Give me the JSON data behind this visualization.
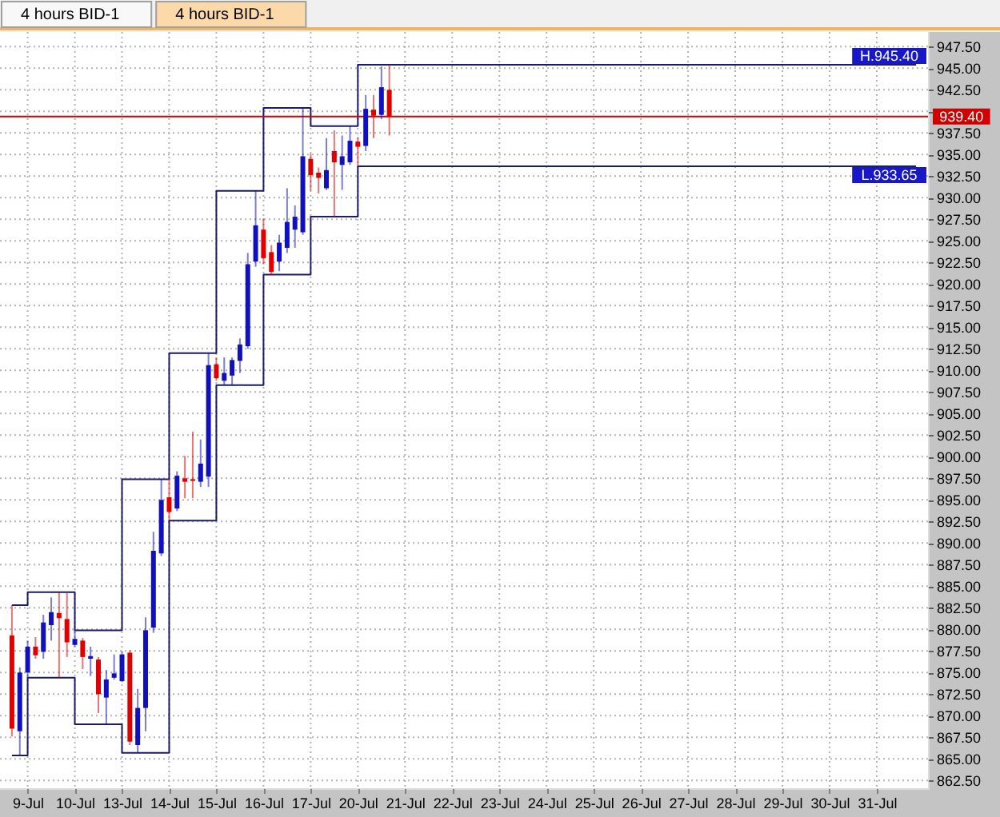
{
  "chart_data": {
    "type": "candlestick",
    "categories": [
      null,
      null,
      "9-Jul",
      null,
      null,
      null,
      null,
      null,
      "10-Jul",
      null,
      null,
      null,
      null,
      null,
      "13-Jul",
      null,
      null,
      null,
      null,
      null,
      "14-Jul",
      null,
      null,
      null,
      null,
      null,
      "15-Jul",
      null,
      null,
      null,
      null,
      null,
      "16-Jul",
      null,
      null,
      null,
      null,
      null,
      "17-Jul",
      null,
      null,
      null,
      null,
      null,
      "20-Jul",
      null,
      null,
      null,
      null,
      null,
      "21-Jul",
      null,
      null,
      null,
      null,
      null,
      "22-Jul",
      null,
      null,
      null,
      null,
      null,
      "23-Jul",
      null,
      null,
      null,
      null,
      null,
      "24-Jul",
      null,
      null,
      null,
      null,
      null,
      "25-Jul",
      null,
      null,
      null,
      null,
      null,
      "26-Jul",
      null,
      null,
      null,
      null,
      null,
      "27-Jul",
      null,
      null,
      null,
      null,
      null,
      "28-Jul",
      null,
      null,
      null,
      null,
      null,
      "29-Jul",
      null,
      null,
      null,
      null,
      null,
      "30-Jul",
      null,
      null,
      null,
      null,
      null,
      "31-Jul",
      null,
      null,
      null,
      null,
      null
    ],
    "ohlc": [
      [
        879.3,
        882.8,
        867.6,
        868.5
      ],
      [
        868.2,
        875.6,
        865.4,
        875.0
      ],
      [
        875.0,
        878.7,
        874.4,
        878.0
      ],
      [
        878.0,
        879.1,
        876.6,
        877.0
      ],
      [
        877.4,
        881.7,
        876.6,
        880.8
      ],
      [
        880.5,
        883.7,
        878.7,
        882.0
      ],
      [
        881.9,
        884.3,
        874.4,
        881.3
      ],
      [
        881.2,
        884.2,
        876.8,
        878.5
      ],
      [
        878.2,
        879.9,
        878.0,
        878.9
      ],
      [
        878.7,
        879.0,
        875.4,
        876.8
      ],
      [
        876.6,
        878.0,
        874.6,
        876.9
      ],
      [
        876.5,
        876.8,
        870.3,
        872.5
      ],
      [
        872.1,
        875.3,
        869.0,
        874.2
      ],
      [
        874.4,
        877.1,
        874.2,
        874.9
      ],
      [
        874.0,
        877.4,
        873.9,
        877.1
      ],
      [
        877.3,
        877.6,
        866.6,
        867.0
      ],
      [
        866.6,
        873.1,
        865.7,
        870.9
      ],
      [
        870.9,
        881.4,
        868.2,
        879.9
      ],
      [
        880.2,
        891.3,
        879.6,
        889.1
      ],
      [
        888.8,
        897.4,
        888.5,
        895.0
      ],
      [
        895.3,
        897.4,
        892.6,
        893.6
      ],
      [
        894.0,
        898.3,
        893.7,
        897.8
      ],
      [
        897.5,
        900.1,
        895.2,
        897.1
      ],
      [
        897.4,
        902.9,
        895.2,
        897.2
      ],
      [
        897.1,
        902.0,
        896.5,
        899.2
      ],
      [
        897.7,
        912.0,
        896.5,
        910.6
      ],
      [
        910.7,
        911.5,
        908.8,
        909.1
      ],
      [
        908.8,
        911.5,
        908.3,
        909.7
      ],
      [
        909.4,
        911.5,
        908.3,
        911.2
      ],
      [
        911.1,
        913.7,
        909.7,
        913.0
      ],
      [
        912.8,
        923.6,
        912.5,
        922.3
      ],
      [
        922.6,
        930.8,
        922.0,
        926.8
      ],
      [
        926.3,
        927.6,
        922.3,
        923.0
      ],
      [
        923.7,
        924.5,
        921.1,
        921.4
      ],
      [
        922.6,
        925.7,
        921.5,
        924.8
      ],
      [
        924.2,
        931.1,
        923.6,
        927.2
      ],
      [
        926.3,
        929.1,
        924.2,
        927.8
      ],
      [
        926.0,
        940.4,
        925.7,
        934.8
      ],
      [
        934.5,
        935.1,
        930.8,
        932.6
      ],
      [
        932.9,
        933.5,
        930.5,
        932.3
      ],
      [
        931.1,
        936.9,
        930.9,
        933.2
      ],
      [
        935.4,
        937.8,
        927.8,
        934.1
      ],
      [
        933.8,
        937.2,
        930.9,
        934.8
      ],
      [
        934.1,
        938.3,
        933.8,
        936.6
      ],
      [
        936.5,
        937.0,
        933.65,
        935.9
      ],
      [
        936.0,
        941.9,
        935.4,
        940.3
      ],
      [
        940.2,
        941.9,
        936.9,
        939.5
      ],
      [
        939.6,
        945.2,
        939.1,
        942.8
      ],
      [
        942.5,
        945.4,
        937.2,
        939.4
      ],
      null,
      null,
      null,
      null,
      null,
      null,
      null,
      null,
      null,
      null,
      null,
      null,
      null,
      null,
      null,
      null,
      null,
      null,
      null,
      null,
      null,
      null,
      null,
      null,
      null,
      null,
      null,
      null,
      null,
      null,
      null,
      null,
      null,
      null,
      null,
      null,
      null,
      null,
      null,
      null,
      null,
      null,
      null,
      null,
      null,
      null,
      null,
      null,
      null,
      null,
      null,
      null,
      null,
      null,
      null,
      null,
      null,
      null,
      null,
      null,
      null,
      null,
      null,
      null,
      null,
      null,
      null
    ],
    "colors": [
      "#e00000",
      "#1010c0",
      "#1010c0",
      "#e00000",
      "#1010c0",
      "#1010c0",
      "#e00000",
      "#e00000",
      "#1010c0",
      "#e00000",
      "#1010c0",
      "#e00000",
      "#1010c0",
      "#1010c0",
      "#1010c0",
      "#e00000",
      "#1010c0",
      "#1010c0",
      "#1010c0",
      "#1010c0",
      "#e00000",
      "#1010c0",
      "#e00000",
      "#e00000",
      "#1010c0",
      "#1010c0",
      "#e00000",
      "#1010c0",
      "#1010c0",
      "#1010c0",
      "#1010c0",
      "#1010c0",
      "#e00000",
      "#e00000",
      "#1010c0",
      "#1010c0",
      "#1010c0",
      "#1010c0",
      "#e00000",
      "#e00000",
      "#1010c0",
      "#e00000",
      "#1010c0",
      "#1010c0",
      "#e00000",
      "#1010c0",
      "#e00000",
      "#1010c0",
      "#e00000",
      null,
      null,
      null,
      null,
      null,
      null,
      null,
      null,
      null,
      null,
      null,
      null,
      null,
      null,
      null,
      null,
      null,
      null,
      null,
      null,
      null,
      null,
      null,
      null,
      null,
      null,
      null,
      null,
      null,
      null,
      null,
      null,
      null,
      null,
      null,
      null,
      null,
      null,
      null,
      null,
      null,
      null,
      null,
      null,
      null,
      null,
      null,
      null,
      null,
      null,
      null,
      null,
      null,
      null,
      null,
      null,
      null,
      null,
      null,
      null,
      null,
      null,
      null,
      null,
      null,
      null,
      null
    ],
    "series": [
      {
        "type": "step",
        "color": "#1b1b6b",
        "values": [
          882.8,
          882.8,
          884.3,
          884.3,
          884.3,
          884.3,
          884.3,
          884.3,
          879.9,
          879.9,
          879.9,
          879.9,
          879.9,
          879.9,
          897.4,
          897.4,
          897.4,
          897.4,
          897.4,
          897.4,
          912.0,
          912.0,
          912.0,
          912.0,
          912.0,
          912.0,
          930.8,
          930.8,
          930.8,
          930.8,
          930.8,
          930.8,
          940.4,
          940.4,
          940.4,
          940.4,
          940.4,
          940.4,
          938.3,
          938.3,
          938.3,
          938.3,
          938.3,
          938.3,
          945.4,
          945.4,
          945.4,
          945.4,
          945.4,
          945.4,
          945.4,
          945.4,
          945.4,
          945.4,
          945.4,
          945.4,
          945.4,
          945.4,
          945.4,
          945.4,
          945.4,
          945.4,
          945.4,
          945.4,
          945.4,
          945.4,
          945.4,
          945.4,
          945.4,
          945.4,
          945.4,
          945.4,
          945.4,
          945.4,
          945.4,
          945.4,
          945.4,
          945.4,
          945.4,
          945.4,
          945.4,
          945.4,
          945.4,
          945.4,
          945.4,
          945.4,
          945.4,
          945.4,
          945.4,
          945.4,
          945.4,
          945.4,
          945.4,
          945.4,
          945.4,
          945.4,
          945.4,
          945.4,
          945.4,
          945.4,
          945.4,
          945.4,
          945.4,
          945.4,
          945.4,
          945.4,
          945.4,
          945.4,
          945.4,
          945.4,
          945.4,
          945.4,
          945.4,
          945.4,
          945.4,
          945.4
        ]
      },
      {
        "type": "step",
        "color": "#1b1b6b",
        "values": [
          865.4,
          865.4,
          874.4,
          874.4,
          874.4,
          874.4,
          874.4,
          874.4,
          869.0,
          869.0,
          869.0,
          869.0,
          869.0,
          869.0,
          865.7,
          865.7,
          865.7,
          865.7,
          865.7,
          865.7,
          892.6,
          892.6,
          892.6,
          892.6,
          892.6,
          892.6,
          908.3,
          908.3,
          908.3,
          908.3,
          908.3,
          908.3,
          921.1,
          921.1,
          921.1,
          921.1,
          921.1,
          921.1,
          927.8,
          927.8,
          927.8,
          927.8,
          927.8,
          927.8,
          933.65,
          933.65,
          933.65,
          933.65,
          933.65,
          933.65,
          933.65,
          933.65,
          933.65,
          933.65,
          933.65,
          933.65,
          933.65,
          933.65,
          933.65,
          933.65,
          933.65,
          933.65,
          933.65,
          933.65,
          933.65,
          933.65,
          933.65,
          933.65,
          933.65,
          933.65,
          933.65,
          933.65,
          933.65,
          933.65,
          933.65,
          933.65,
          933.65,
          933.65,
          933.65,
          933.65,
          933.65,
          933.65,
          933.65,
          933.65,
          933.65,
          933.65,
          933.65,
          933.65,
          933.65,
          933.65,
          933.65,
          933.65,
          933.65,
          933.65,
          933.65,
          933.65,
          933.65,
          933.65,
          933.65,
          933.65,
          933.65,
          933.65,
          933.65,
          933.65,
          933.65,
          933.65,
          933.65,
          933.65,
          933.65,
          933.65,
          933.65,
          933.65,
          933.65,
          933.65,
          933.65,
          933.65
        ]
      }
    ],
    "ylim": [
      861.6,
      949.2
    ],
    "yticks": [
      {
        "value": 862.5,
        "label": "862.50"
      },
      {
        "value": 865,
        "label": "865.00"
      },
      {
        "value": 867.5,
        "label": "867.50"
      },
      {
        "value": 870,
        "label": "870.00"
      },
      {
        "value": 872.5,
        "label": "872.50"
      },
      {
        "value": 875,
        "label": "875.00"
      },
      {
        "value": 877.5,
        "label": "877.50"
      },
      {
        "value": 880,
        "label": "880.00"
      },
      {
        "value": 882.5,
        "label": "882.50"
      },
      {
        "value": 885,
        "label": "885.00"
      },
      {
        "value": 887.5,
        "label": "887.50"
      },
      {
        "value": 890,
        "label": "890.00"
      },
      {
        "value": 892.5,
        "label": "892.50"
      },
      {
        "value": 895,
        "label": "895.00"
      },
      {
        "value": 897.5,
        "label": "897.50"
      },
      {
        "value": 900,
        "label": "900.00"
      },
      {
        "value": 902.5,
        "label": "902.50"
      },
      {
        "value": 905,
        "label": "905.00"
      },
      {
        "value": 907.5,
        "label": "907.50"
      },
      {
        "value": 910,
        "label": "910.00"
      },
      {
        "value": 912.5,
        "label": "912.50"
      },
      {
        "value": 915,
        "label": "915.00"
      },
      {
        "value": 917.5,
        "label": "917.50"
      },
      {
        "value": 920,
        "label": "920.00"
      },
      {
        "value": 922.5,
        "label": "922.50"
      },
      {
        "value": 925,
        "label": "925.00"
      },
      {
        "value": 927.5,
        "label": "927.50"
      },
      {
        "value": 930,
        "label": "930.00"
      },
      {
        "value": 932.5,
        "label": "932.50"
      },
      {
        "value": 935,
        "label": "935.00"
      },
      {
        "value": 937.5,
        "label": "937.50"
      },
      {
        "value": 940,
        "label": null
      },
      {
        "value": 942.5,
        "label": "942.50"
      },
      {
        "value": 945,
        "label": "945.00"
      },
      {
        "value": 947.5,
        "label": "947.50"
      }
    ],
    "ref_lines": [
      {
        "axis": "y",
        "value": 939.4,
        "label": "939.40",
        "color": "#d00000"
      }
    ],
    "annotations": [
      "4 hours BID-1",
      "4 hours BID-1",
      {
        "text": "H.945.40",
        "y": 945.4
      },
      {
        "text": "L.933.65",
        "y": 933.65
      }
    ],
    "grid": true
  }
}
